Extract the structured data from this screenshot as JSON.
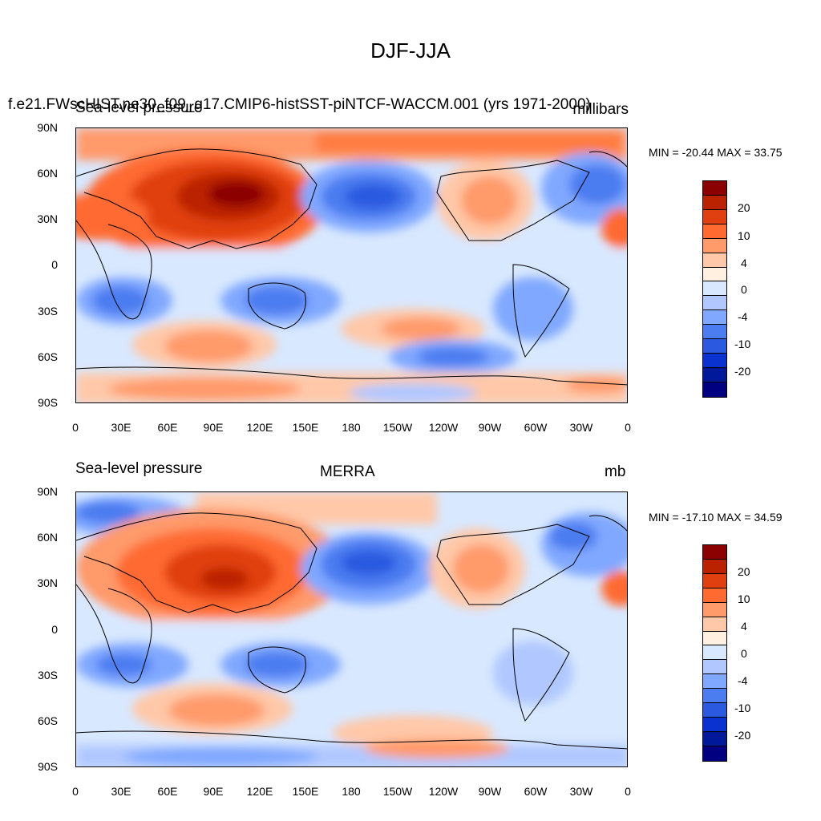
{
  "title": "DJF-JJA",
  "panels": [
    {
      "left_label": "Sea-level pressure",
      "center_label": "f.e21.FWscHIST.ne30_f09_g17.CMIP6-histSST-piNTCF-WACCM.001 (yrs 1971-2000)",
      "right_label": "millibars",
      "minmax": "MIN = -20.44 MAX =  33.75"
    },
    {
      "left_label": "Sea-level pressure",
      "center_label": "MERRA",
      "right_label": "mb",
      "minmax": "MIN = -17.10 MAX =  34.59"
    }
  ],
  "lat_ticks": [
    "90N",
    "60N",
    "30N",
    "0",
    "30S",
    "60S",
    "90S"
  ],
  "lon_ticks": [
    "0",
    "30E",
    "60E",
    "90E",
    "120E",
    "150E",
    "180",
    "150W",
    "120W",
    "90W",
    "60W",
    "30W",
    "0"
  ],
  "colorbar": {
    "colors": [
      "#8b0000",
      "#bb2200",
      "#e04010",
      "#ff6a30",
      "#ff9a6a",
      "#ffc8a8",
      "#fff0e0",
      "#d8e8ff",
      "#b0c8ff",
      "#80a8ff",
      "#4b7cf0",
      "#2b5ae0",
      "#0a32d0",
      "#00189a",
      "#000080"
    ],
    "labels": [
      "20",
      "10",
      "4",
      "0",
      "-4",
      "-10",
      "-20"
    ]
  }
}
